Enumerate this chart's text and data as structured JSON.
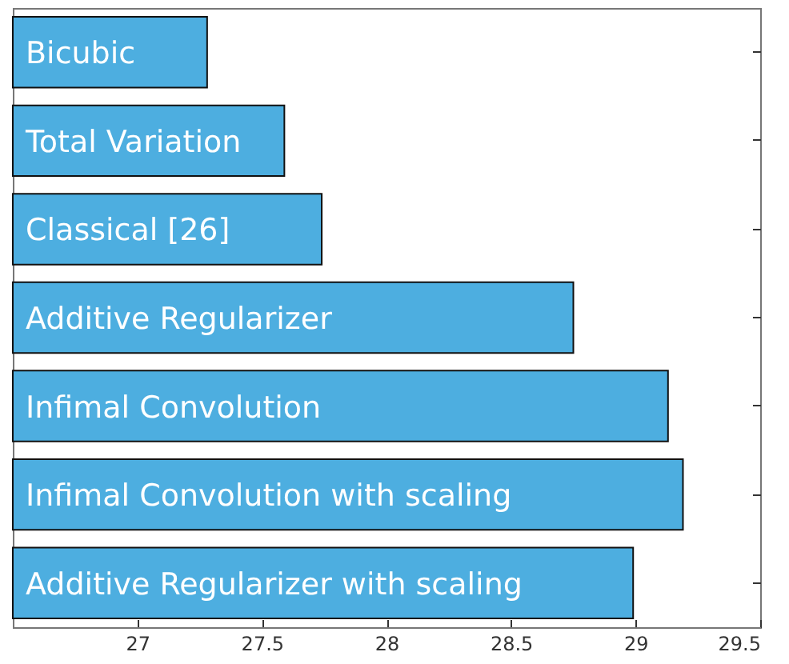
{
  "chart_data": {
    "type": "bar",
    "orientation": "horizontal",
    "categories": [
      "Bicubic",
      "Total Variation",
      "Classical [26]",
      "Additive Regularizer",
      "Infimal Convolution",
      "Infimal Convolution with scaling",
      "Additive Regularizer with scaling"
    ],
    "values": [
      27.28,
      27.59,
      27.74,
      28.75,
      29.13,
      29.19,
      28.99
    ],
    "color": "#4daee0",
    "xlim": [
      26.5,
      29.5
    ],
    "xticks": [
      27,
      27.5,
      28,
      28.5,
      29,
      29.5
    ],
    "tick_labels": "x",
    "grid": false
  }
}
